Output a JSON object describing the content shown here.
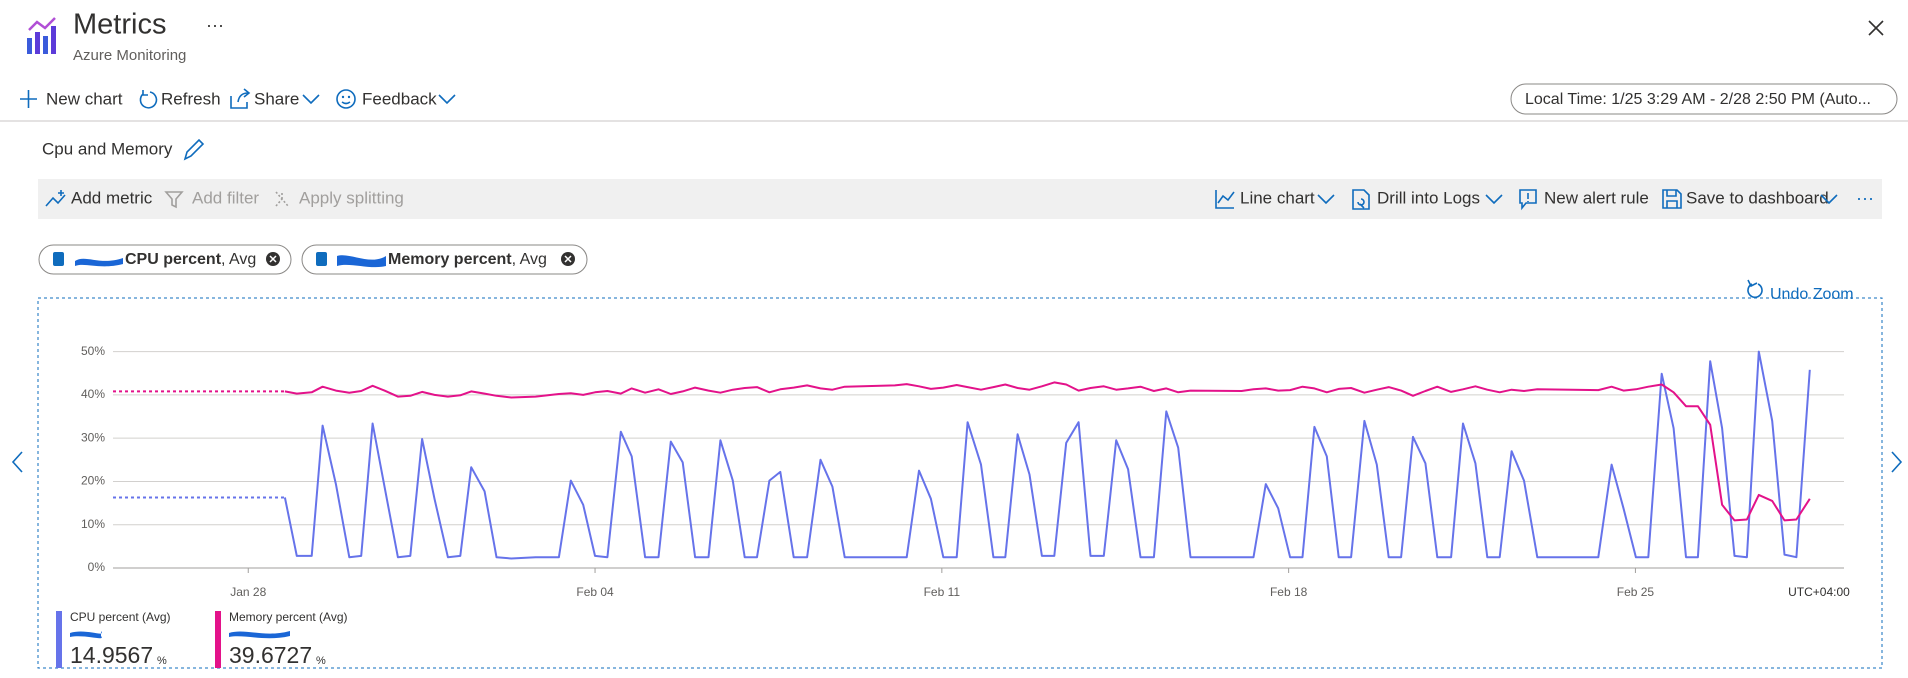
{
  "header": {
    "title": "Metrics",
    "subtitle": "Azure Monitoring"
  },
  "toolbar": {
    "items": [
      "New chart",
      "Refresh",
      "Share",
      "Feedback"
    ],
    "time_range": "Local Time: 1/25 3:29 AM - 2/28 2:50 PM (Auto..."
  },
  "chart_name": "Cpu and Memory",
  "chart_toolbar": {
    "left": [
      "Add metric",
      "Add filter",
      "Apply splitting"
    ],
    "right": [
      "Line chart",
      "Drill into Logs",
      "New alert rule",
      "Save to dashboard"
    ]
  },
  "metric_pills": [
    {
      "metric": "CPU percent",
      "aggregation": ", Avg"
    },
    {
      "metric": "Memory percent",
      "aggregation": ", Avg"
    }
  ],
  "undo_zoom": "Undo Zoom",
  "chart_data": {
    "type": "line",
    "x": [
      -2.73,
      0.74,
      0.98,
      1.28,
      1.5,
      1.77,
      2.04,
      2.28,
      2.51,
      2.75,
      3.02,
      3.27,
      3.51,
      3.76,
      4.03,
      4.28,
      4.5,
      4.77,
      5.01,
      5.31,
      5.8,
      6.27,
      6.51,
      6.76,
      7.0,
      7.25,
      7.52,
      7.74,
      8.01,
      8.28,
      8.53,
      8.77,
      9.02,
      9.29,
      9.53,
      9.78,
      10.02,
      10.27,
      10.52,
      10.74,
      11.01,
      11.28,
      11.55,
      11.79,
      12.04,
      13.05,
      13.29,
      13.54,
      13.78,
      14.03,
      14.3,
      14.52,
      14.79,
      15.04,
      15.28,
      15.53,
      15.77,
      16.02,
      16.27,
      16.51,
      16.76,
      17.0,
      17.27,
      17.52,
      17.76,
      18.01,
      18.28,
      18.53,
      18.77,
      19.02,
      20.05,
      20.29,
      20.54,
      20.79,
      21.03,
      21.28,
      21.52,
      21.77,
      22.01,
      22.26,
      22.53,
      22.78,
      23.02,
      23.27,
      23.51,
      23.76,
      24.0,
      24.28,
      24.52,
      24.77,
      25.01,
      25.26,
      25.5,
      25.75,
      26.02,
      27.25,
      27.52,
      27.76,
      28.01,
      28.26,
      28.53,
      28.77,
      29.02,
      29.26,
      29.51,
      29.75,
      30.0,
      30.25,
      30.49,
      30.76,
      31.01,
      31.25,
      31.52
    ],
    "series": [
      {
        "name": "CPU percent (Avg)",
        "color": "#6673ea",
        "values": [
          16.3,
          16.3,
          2.8,
          2.8,
          32.9,
          19.4,
          2.5,
          2.8,
          33.4,
          18.8,
          2.5,
          2.8,
          29.8,
          16.0,
          2.5,
          2.8,
          23.3,
          17.7,
          2.5,
          2.2,
          2.5,
          2.5,
          20.2,
          14.6,
          2.8,
          2.5,
          31.5,
          25.8,
          2.5,
          2.5,
          29.2,
          24.4,
          2.5,
          2.5,
          29.5,
          20.2,
          2.5,
          2.5,
          20.2,
          22.2,
          2.5,
          2.5,
          25.0,
          18.8,
          2.5,
          2.5,
          2.5,
          22.5,
          16.0,
          2.5,
          2.5,
          33.7,
          23.9,
          2.5,
          2.5,
          30.9,
          21.6,
          2.8,
          2.8,
          28.9,
          33.7,
          2.8,
          2.8,
          29.5,
          22.8,
          2.5,
          2.5,
          36.2,
          27.8,
          2.5,
          2.5,
          2.5,
          19.4,
          13.8,
          2.5,
          2.5,
          32.6,
          25.8,
          2.5,
          2.5,
          34.0,
          23.9,
          2.5,
          2.5,
          30.3,
          24.2,
          2.5,
          2.5,
          33.4,
          24.2,
          2.5,
          2.5,
          27.0,
          20.2,
          2.5,
          2.5,
          23.9,
          13.8,
          2.5,
          2.5,
          44.9,
          32.3,
          2.5,
          2.5,
          47.8,
          32.3,
          2.8,
          2.5,
          50.0,
          34.0,
          3.1,
          2.5,
          45.8
        ]
      },
      {
        "name": "Memory percent (Avg)",
        "color": "#e3128a",
        "values": [
          40.8,
          40.8,
          40.3,
          40.6,
          41.9,
          41.0,
          40.5,
          40.9,
          42.1,
          41.0,
          39.6,
          39.8,
          40.7,
          40.0,
          39.6,
          39.9,
          40.8,
          40.3,
          39.8,
          39.4,
          39.6,
          40.2,
          40.4,
          40.0,
          40.6,
          40.9,
          40.3,
          41.5,
          40.5,
          41.3,
          40.2,
          40.8,
          41.7,
          41.0,
          40.5,
          41.2,
          41.6,
          41.8,
          40.6,
          41.3,
          41.7,
          42.2,
          41.5,
          41.2,
          41.9,
          42.2,
          42.5,
          42.0,
          41.4,
          41.7,
          42.3,
          41.8,
          41.2,
          41.8,
          42.4,
          41.6,
          41.2,
          42.0,
          42.9,
          42.4,
          41.0,
          41.6,
          42.0,
          41.2,
          41.5,
          41.9,
          40.9,
          41.5,
          40.6,
          41.0,
          40.9,
          41.3,
          41.5,
          41.0,
          41.1,
          41.9,
          41.5,
          40.6,
          41.4,
          41.6,
          40.5,
          41.2,
          41.8,
          41.0,
          39.8,
          40.9,
          41.9,
          40.7,
          41.3,
          42.0,
          41.2,
          40.6,
          41.2,
          40.9,
          41.3,
          41.1,
          41.9,
          41.0,
          41.3,
          41.9,
          42.4,
          40.6,
          37.4,
          37.4,
          33.1,
          14.6,
          11.0,
          11.2,
          16.9,
          15.5,
          11.0,
          11.2,
          16.0
        ]
      }
    ],
    "xlim": [
      -2.73,
      32.21
    ],
    "xticks": [
      {
        "value": 0,
        "label": "Jan 28"
      },
      {
        "value": 7,
        "label": "Feb 04"
      },
      {
        "value": 14,
        "label": "Feb 11"
      },
      {
        "value": 21,
        "label": "Feb 18"
      },
      {
        "value": 28,
        "label": "Feb 25"
      }
    ],
    "ylim": [
      0,
      55
    ],
    "yticks": [
      {
        "value": 0,
        "label": "0%"
      },
      {
        "value": 10,
        "label": "10%"
      },
      {
        "value": 20,
        "label": "20%"
      },
      {
        "value": 30,
        "label": "30%"
      },
      {
        "value": 40,
        "label": "40%"
      },
      {
        "value": 50,
        "label": "50%"
      }
    ],
    "grid": true,
    "timezone": "UTC+04:00"
  },
  "legend_summary": [
    {
      "value": 14.9567,
      "unit": "%"
    },
    {
      "value": 39.6727,
      "unit": "%"
    }
  ]
}
